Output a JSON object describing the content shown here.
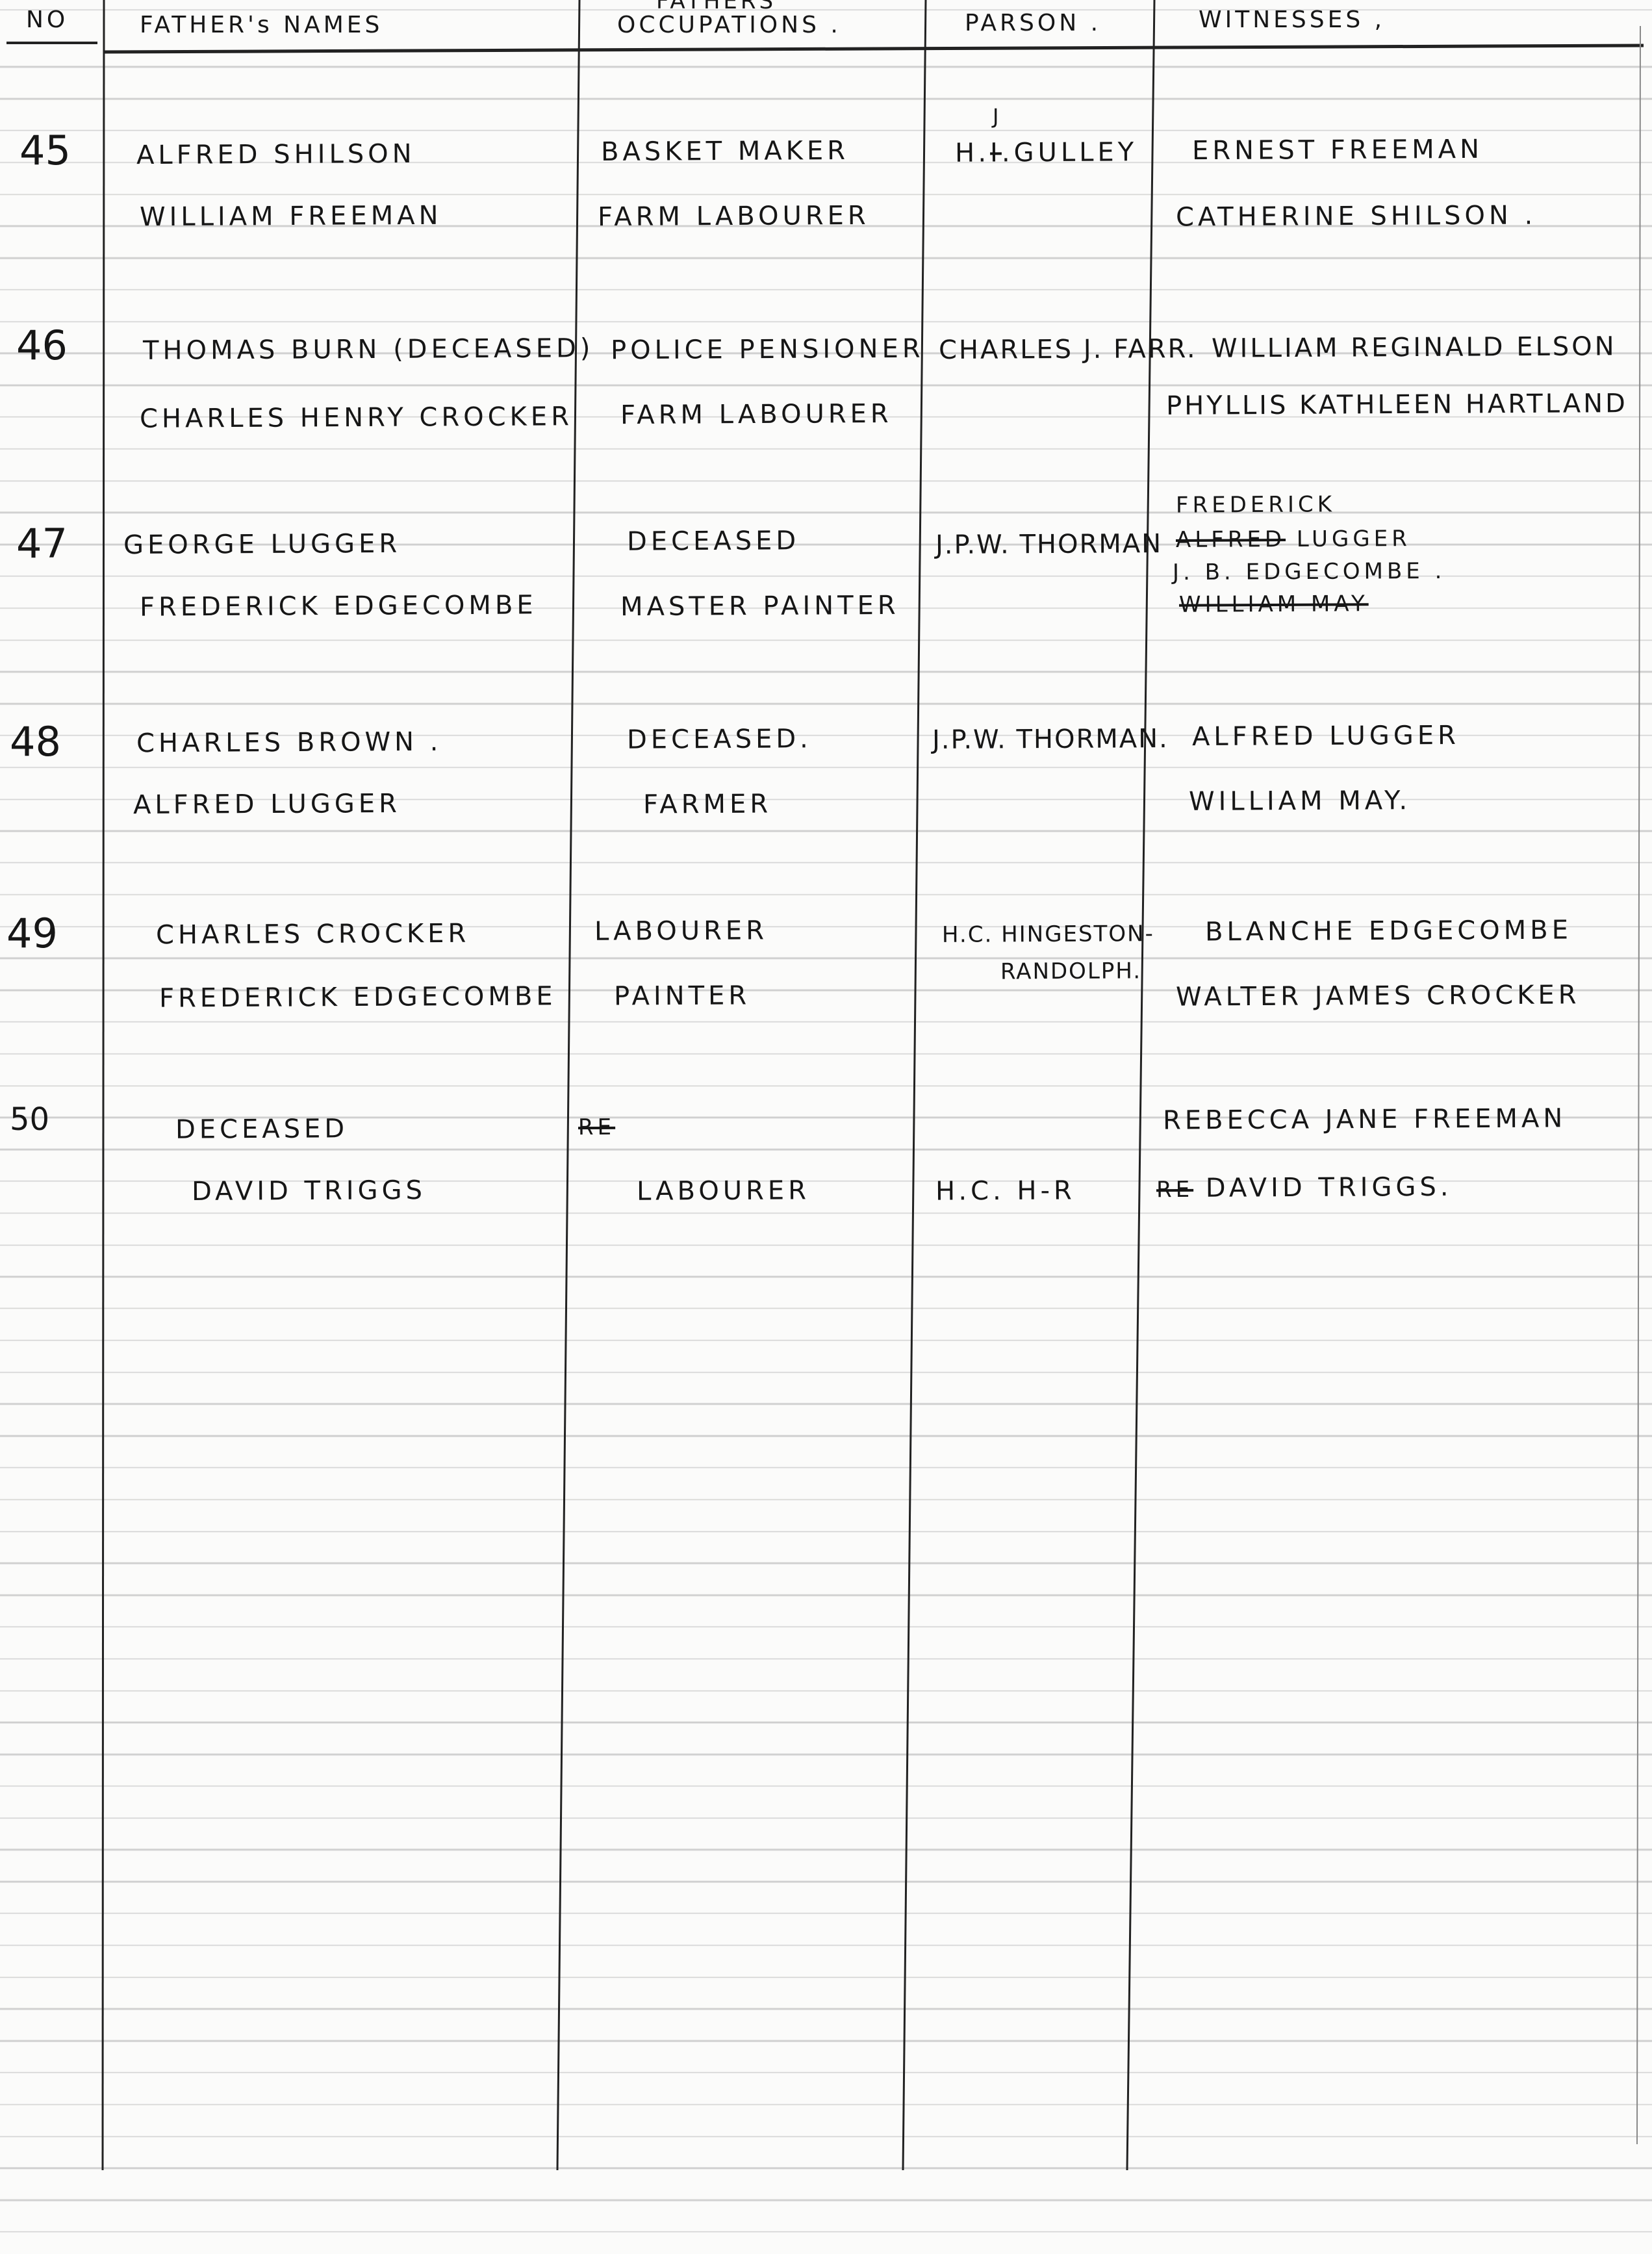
{
  "header": {
    "no": "NO",
    "fathers_names": "FATHER's NAMES",
    "occupations_top": "FATHERS",
    "occupations": "OCCUPATIONS .",
    "parson": "PARSON .",
    "witnesses": "WITNESSES ,"
  },
  "entries": [
    {
      "no": "45",
      "names": [
        "ALFRED SHILSON",
        "WILLIAM FREEMAN"
      ],
      "occupations": [
        "BASKET MAKER",
        "FARM LABOURER"
      ],
      "parson": {
        "prefix": "H.",
        "struck": "I",
        "correction": "J",
        "suffix": ".GULLEY"
      },
      "witnesses": [
        "ERNEST FREEMAN",
        "CATHERINE SHILSON ."
      ]
    },
    {
      "no": "46",
      "names": [
        "THOMAS BURN (DECEASED)",
        "CHARLES HENRY CROCKER"
      ],
      "occupations": [
        "POLICE PENSIONER",
        "FARM LABOURER"
      ],
      "parson": "CHARLES J. FARR.",
      "witnesses": [
        "WILLIAM REGINALD ELSON",
        "PHYLLIS KATHLEEN HARTLAND"
      ]
    },
    {
      "no": "47",
      "names": [
        "GEORGE LUGGER",
        "FREDERICK EDGECOMBE"
      ],
      "occupations": [
        "DECEASED",
        "MASTER PAINTER"
      ],
      "parson": "J.P.W. THORMAN",
      "witnesses": {
        "insert": "FREDERICK",
        "struck1": "ALFRED",
        "line1": "LUGGER",
        "line2": "J. B. EDGECOMBE .",
        "struck2": "WILLIAM MAY"
      }
    },
    {
      "no": "48",
      "names": [
        "CHARLES BROWN .",
        "ALFRED LUGGER"
      ],
      "occupations": [
        "DECEASED.",
        "FARMER"
      ],
      "parson": "J.P.W. THORMAN.",
      "witnesses": [
        "ALFRED LUGGER",
        "WILLIAM MAY."
      ]
    },
    {
      "no": "49",
      "names": [
        "CHARLES CROCKER",
        "FREDERICK EDGECOMBE"
      ],
      "occupations": [
        "LABOURER",
        "PAINTER"
      ],
      "parson": [
        "H.C. HINGESTON-",
        "RANDOLPH."
      ],
      "witnesses": [
        "BLANCHE EDGECOMBE",
        "WALTER JAMES CROCKER"
      ]
    },
    {
      "no": "50",
      "names": [
        "DECEASED",
        "DAVID TRIGGS"
      ],
      "occupations": {
        "struck": "Re",
        "line2": "LABOURER"
      },
      "parson": "H.C. H-R",
      "witnesses": {
        "line1": "REBECCA JANE FREEMAN",
        "struck": "Re",
        "line2": "DAVID TRIGGS."
      }
    }
  ]
}
